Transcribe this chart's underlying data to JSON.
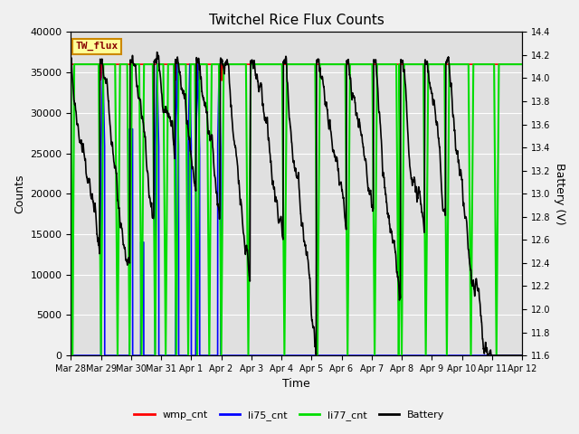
{
  "title": "Twitchel Rice Flux Counts",
  "xlabel": "Time",
  "ylabel_left": "Counts",
  "ylabel_right": "Battery (V)",
  "ylim_left": [
    0,
    40000
  ],
  "ylim_right": [
    11.6,
    14.4
  ],
  "bg_color": "#f0f0f0",
  "plot_bg_color": "#e0e0e0",
  "legend_box_color": "#ffff99",
  "legend_box_edge": "#cc8800",
  "legend_label": "TW_flux",
  "x_tick_labels": [
    "Mar 28",
    "Mar 29",
    "Mar 30",
    "Mar 31",
    "Apr 1",
    "Apr 2",
    "Apr 3",
    "Apr 4",
    "Apr 5",
    "Apr 6",
    "Apr 7",
    "Apr 8",
    "Apr 9",
    "Apr 10",
    "Apr 11",
    "Apr 12"
  ],
  "colors": {
    "wmp_cnt": "#ff0000",
    "li75_cnt": "#0000ff",
    "li77_cnt": "#00dd00",
    "Battery": "#000000"
  },
  "line_widths": {
    "wmp_cnt": 1.2,
    "li75_cnt": 1.2,
    "li77_cnt": 1.5,
    "Battery": 1.2
  },
  "yticks_left": [
    0,
    5000,
    10000,
    15000,
    20000,
    25000,
    30000,
    35000,
    40000
  ],
  "batt_ticks": [
    11.6,
    11.8,
    12.0,
    12.2,
    12.4,
    12.6,
    12.8,
    13.0,
    13.2,
    13.4,
    13.6,
    13.8,
    14.0,
    14.2,
    14.4
  ]
}
